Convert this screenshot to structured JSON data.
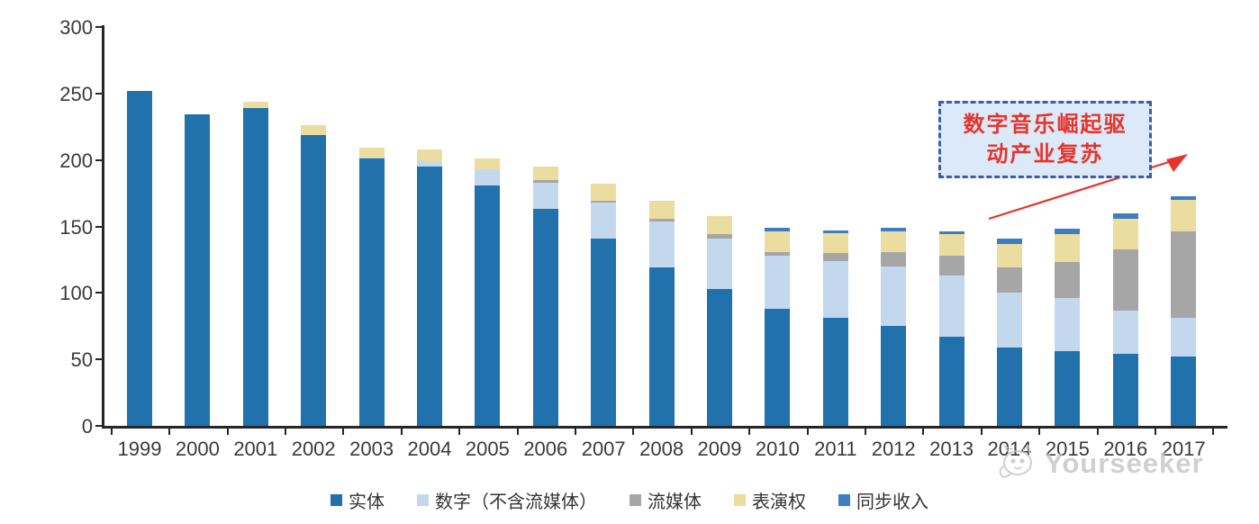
{
  "chart_data": {
    "type": "bar",
    "subtype": "stacked",
    "title": "",
    "xlabel": "",
    "ylabel": "",
    "ylim": [
      0,
      300
    ],
    "yticks": [
      0,
      50,
      100,
      150,
      200,
      250,
      300
    ],
    "grid": false,
    "legend_position": "bottom",
    "categories": [
      "1999",
      "2000",
      "2001",
      "2002",
      "2003",
      "2004",
      "2005",
      "2006",
      "2007",
      "2008",
      "2009",
      "2010",
      "2011",
      "2012",
      "2013",
      "2014",
      "2015",
      "2016",
      "2017"
    ],
    "series": [
      {
        "key": "physical",
        "name": "实体",
        "color": "#2171AD",
        "values": [
          252,
          234,
          239,
          219,
          201,
          195,
          181,
          163,
          141,
          119,
          103,
          88,
          81,
          75,
          67,
          59,
          56,
          54,
          52
        ]
      },
      {
        "key": "digital",
        "name": "数字（不含流媒体）",
        "color": "#C3D7ED",
        "values": [
          0,
          0,
          0,
          0,
          1,
          4,
          12,
          20,
          27,
          35,
          38,
          40,
          43,
          45,
          46,
          41,
          40,
          33,
          29
        ]
      },
      {
        "key": "streaming",
        "name": "流媒体",
        "color": "#A6A6A6",
        "values": [
          0,
          0,
          0,
          0,
          0,
          0,
          0,
          2,
          1,
          2,
          3,
          3,
          6,
          11,
          15,
          19,
          27,
          46,
          65
        ]
      },
      {
        "key": "performance",
        "name": "表演权",
        "color": "#EBDC9F",
        "values": [
          0,
          0,
          5,
          7,
          7,
          9,
          8,
          10,
          13,
          13,
          14,
          15,
          15,
          15,
          16,
          18,
          21,
          23,
          24
        ]
      },
      {
        "key": "sync",
        "name": "同步收入",
        "color": "#3D7EC0",
        "values": [
          0,
          0,
          0,
          0,
          0,
          0,
          0,
          0,
          0,
          0,
          0,
          3,
          2,
          3,
          2,
          4,
          4,
          4,
          3
        ]
      }
    ]
  },
  "annotation": {
    "line1": "数字音乐崛起驱",
    "line2": "动产业复苏",
    "text_color": "#E5352B",
    "border_color": "#3B5CA8",
    "fill_color": "#DBE9F8",
    "arrow_color": "#E5352B"
  },
  "watermark": {
    "text": "Yourseeker"
  }
}
